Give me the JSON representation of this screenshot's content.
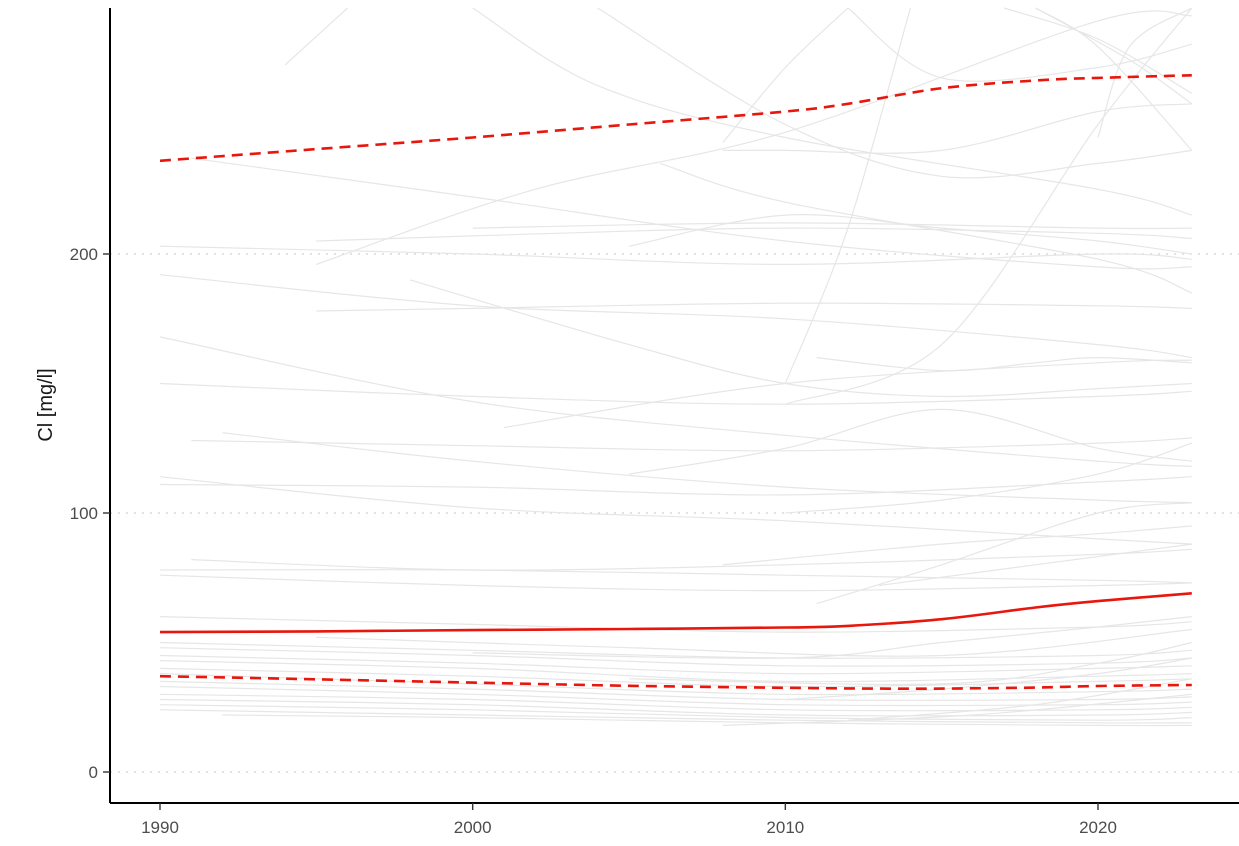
{
  "chart_data": {
    "type": "line",
    "title": "",
    "xlabel": "",
    "ylabel": "Cl [mg/l]",
    "xlim": [
      1988.5,
      2024.5
    ],
    "ylim": [
      -13,
      295
    ],
    "x_ticks": [
      1990,
      2000,
      2010,
      2020
    ],
    "y_ticks": [
      0,
      100,
      200
    ],
    "grid": "horizontal dotted at major y ticks",
    "legend": "none",
    "colors": {
      "summary": "#e8160c",
      "individual": "#e6e6e6",
      "grid": "#d9d9d9",
      "axis": "#000000"
    },
    "summary_series": [
      {
        "style": "solid",
        "x": [
          1990,
          1995,
          2000,
          2005,
          2010,
          2012,
          2015,
          2018,
          2020,
          2023
        ],
        "values": [
          54,
          54.3,
          54.8,
          55.2,
          55.8,
          56.4,
          59,
          63.5,
          66,
          69
        ]
      },
      {
        "style": "dashed",
        "x": [
          1990,
          1995,
          2000,
          2005,
          2010,
          2012,
          2015,
          2018,
          2020,
          2023
        ],
        "values": [
          236,
          240.5,
          245,
          250,
          255,
          258,
          264,
          267,
          268,
          269
        ]
      },
      {
        "style": "dashed",
        "x": [
          1990,
          1995,
          2000,
          2005,
          2010,
          2013,
          2015,
          2018,
          2020,
          2023
        ],
        "values": [
          37,
          35.8,
          34.5,
          33.3,
          32.5,
          32.2,
          32.2,
          32.6,
          33.2,
          33.6
        ]
      }
    ],
    "individual_series": [
      {
        "x": [
          1994,
          1996
        ],
        "values": [
          273,
          295
        ]
      },
      {
        "x": [
          1991,
          2000,
          2010,
          2020,
          2023
        ],
        "values": [
          237,
          222,
          205,
          195,
          195
        ]
      },
      {
        "x": [
          1990,
          2000,
          2010,
          2020,
          2023
        ],
        "values": [
          203,
          200,
          196,
          200,
          198
        ]
      },
      {
        "x": [
          1990,
          2000,
          2010,
          2020,
          2023
        ],
        "values": [
          192,
          180,
          175,
          165,
          160
        ]
      },
      {
        "x": [
          1990,
          2000,
          2010,
          2020,
          2023
        ],
        "values": [
          168,
          143,
          130,
          120,
          118
        ]
      },
      {
        "x": [
          1990,
          2000,
          2010,
          2020,
          2023
        ],
        "values": [
          150,
          145,
          142,
          145,
          147
        ]
      },
      {
        "x": [
          1991,
          2000,
          2010,
          2020,
          2023
        ],
        "values": [
          128,
          126,
          124,
          127,
          129
        ]
      },
      {
        "x": [
          1992,
          2000,
          2010,
          2020,
          2023
        ],
        "values": [
          131,
          120,
          110,
          105,
          104
        ]
      },
      {
        "x": [
          1990,
          2000,
          2010,
          2020,
          2023
        ],
        "values": [
          114,
          102,
          97,
          90,
          88
        ]
      },
      {
        "x": [
          1990,
          2000,
          2010,
          2020,
          2023
        ],
        "values": [
          111,
          110,
          107,
          112,
          114
        ]
      },
      {
        "x": [
          1990,
          2000,
          2010,
          2020,
          2023
        ],
        "values": [
          78,
          78,
          76,
          74,
          73
        ]
      },
      {
        "x": [
          1990,
          2000,
          2010,
          2020,
          2023
        ],
        "values": [
          76,
          72,
          70,
          72,
          73
        ]
      },
      {
        "x": [
          1991,
          2000,
          2010,
          2020,
          2023
        ],
        "values": [
          82,
          78,
          80,
          84,
          86
        ]
      },
      {
        "x": [
          1990,
          2000,
          2010,
          2020,
          2023
        ],
        "values": [
          60,
          57,
          54,
          56,
          58
        ]
      },
      {
        "x": [
          1995,
          2002,
          2010,
          2020,
          2023
        ],
        "values": [
          196,
          225,
          247,
          290,
          292
        ]
      },
      {
        "x": [
          1995,
          2000,
          2010,
          2020,
          2023
        ],
        "values": [
          205,
          207,
          210,
          208,
          206
        ]
      },
      {
        "x": [
          1995,
          2000,
          2010,
          2020,
          2023
        ],
        "values": [
          178,
          179,
          181,
          180,
          179
        ]
      },
      {
        "x": [
          1998,
          2005,
          2010,
          2015,
          2020,
          2023
        ],
        "values": [
          190,
          165,
          150,
          145,
          148,
          150
        ]
      },
      {
        "x": [
          2001,
          2010,
          2020,
          2023
        ],
        "values": [
          133,
          150,
          158,
          159
        ]
      },
      {
        "x": [
          2000,
          2004,
          2010,
          2020,
          2023
        ],
        "values": [
          295,
          265,
          245,
          225,
          215
        ]
      },
      {
        "x": [
          2004,
          2010,
          2015,
          2020,
          2023
        ],
        "values": [
          295,
          250,
          230,
          235,
          240
        ]
      },
      {
        "x": [
          2008,
          2010,
          2012
        ],
        "values": [
          243,
          272,
          295
        ]
      },
      {
        "x": [
          2008,
          2010,
          2015,
          2020,
          2023
        ],
        "values": [
          240,
          240,
          240,
          255,
          258
        ]
      },
      {
        "x": [
          2006,
          2010,
          2020,
          2023
        ],
        "values": [
          235,
          220,
          198,
          185
        ]
      },
      {
        "x": [
          2005,
          2010,
          2015,
          2020,
          2023
        ],
        "values": [
          203,
          215,
          210,
          205,
          200
        ]
      },
      {
        "x": [
          2010,
          2012,
          2014
        ],
        "values": [
          150,
          210,
          295
        ]
      },
      {
        "x": [
          2011,
          2015,
          2018,
          2020,
          2023
        ],
        "values": [
          160,
          155,
          158,
          160,
          158
        ]
      },
      {
        "x": [
          2010,
          2015,
          2020,
          2023
        ],
        "values": [
          142,
          165,
          250,
          295
        ]
      },
      {
        "x": [
          2012,
          2015,
          2020,
          2023
        ],
        "values": [
          295,
          268,
          272,
          281
        ]
      },
      {
        "x": [
          2017,
          2020,
          2023
        ],
        "values": [
          295,
          283,
          262
        ]
      },
      {
        "x": [
          2018,
          2020,
          2023
        ],
        "values": [
          295,
          280,
          240
        ]
      },
      {
        "x": [
          2020,
          2021,
          2023
        ],
        "values": [
          245,
          280,
          295
        ]
      },
      {
        "x": [
          2018,
          2021,
          2023
        ],
        "values": [
          295,
          275,
          258
        ]
      },
      {
        "x": [
          2000,
          2010,
          2020,
          2023
        ],
        "values": [
          210,
          212,
          210,
          210
        ]
      },
      {
        "x": [
          2005,
          2010,
          2015,
          2020,
          2023
        ],
        "values": [
          115,
          125,
          140,
          125,
          120
        ]
      },
      {
        "x": [
          2010,
          2015,
          2020,
          2023
        ],
        "values": [
          100,
          105,
          115,
          127
        ]
      },
      {
        "x": [
          2008,
          2015,
          2020,
          2023
        ],
        "values": [
          80,
          88,
          92,
          95
        ]
      },
      {
        "x": [
          2011,
          2015,
          2020,
          2023
        ],
        "values": [
          65,
          80,
          100,
          104
        ]
      },
      {
        "x": [
          2013,
          2018,
          2023
        ],
        "values": [
          72,
          80,
          88
        ]
      },
      {
        "x": [
          1990,
          2000,
          2010,
          2020,
          2023
        ],
        "values": [
          50,
          47,
          44,
          45,
          47
        ]
      },
      {
        "x": [
          1990,
          2000,
          2010,
          2020,
          2023
        ],
        "values": [
          48,
          45,
          41,
          42,
          44
        ]
      },
      {
        "x": [
          1990,
          2000,
          2010,
          2020,
          2023
        ],
        "values": [
          45,
          42,
          38,
          40,
          41
        ]
      },
      {
        "x": [
          1990,
          2000,
          2010,
          2020,
          2023
        ],
        "values": [
          43,
          40,
          35,
          37,
          38
        ]
      },
      {
        "x": [
          1990,
          2000,
          2010,
          2020,
          2023
        ],
        "values": [
          40,
          37,
          33,
          35,
          36
        ]
      },
      {
        "x": [
          1990,
          2000,
          2010,
          2020,
          2023
        ],
        "values": [
          38,
          34,
          30,
          31,
          32
        ]
      },
      {
        "x": [
          1990,
          2000,
          2010,
          2020,
          2023
        ],
        "values": [
          35,
          32,
          28,
          28,
          29
        ]
      },
      {
        "x": [
          1990,
          2000,
          2010,
          2020,
          2023
        ],
        "values": [
          33,
          30,
          26,
          26,
          27
        ]
      },
      {
        "x": [
          1990,
          2000,
          2010,
          2020,
          2023
        ],
        "values": [
          30,
          28,
          24,
          24,
          25
        ]
      },
      {
        "x": [
          1990,
          2000,
          2010,
          2020,
          2023
        ],
        "values": [
          28,
          26,
          22,
          22,
          23
        ]
      },
      {
        "x": [
          1990,
          2000,
          2010,
          2020,
          2023
        ],
        "values": [
          26,
          24,
          21,
          20,
          21
        ]
      },
      {
        "x": [
          1990,
          2000,
          2010,
          2020,
          2023
        ],
        "values": [
          24,
          22,
          20,
          19,
          19
        ]
      },
      {
        "x": [
          1992,
          2000,
          2010,
          2020,
          2023
        ],
        "values": [
          22,
          21,
          19,
          18,
          18
        ]
      },
      {
        "x": [
          1995,
          2005,
          2015,
          2023
        ],
        "values": [
          52,
          48,
          45,
          55
        ]
      },
      {
        "x": [
          2000,
          2010,
          2015,
          2020,
          2023
        ],
        "values": [
          46,
          44,
          50,
          56,
          60
        ]
      },
      {
        "x": [
          2005,
          2015,
          2020,
          2023
        ],
        "values": [
          36,
          34,
          42,
          50
        ]
      },
      {
        "x": [
          2010,
          2015,
          2020,
          2023
        ],
        "values": [
          28,
          32,
          38,
          44
        ]
      },
      {
        "x": [
          2008,
          2016,
          2023
        ],
        "values": [
          18,
          22,
          30
        ]
      },
      {
        "x": [
          2012,
          2018,
          2023
        ],
        "values": [
          20,
          26,
          36
        ]
      }
    ]
  }
}
